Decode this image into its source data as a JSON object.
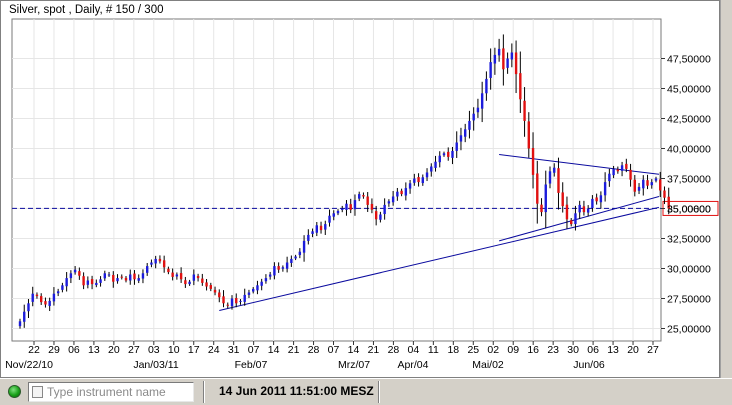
{
  "chart_title": "Silver, spot , Daily, # 150 / 300",
  "status": {
    "search_placeholder": "Type instrument name",
    "timestamp": "14 Jun 2011 11:51:00 MESZ",
    "led_color": "#19a019"
  },
  "colors": {
    "up": "#1b1bdb",
    "down": "#e01010",
    "trendline": "#0a0a9e",
    "price_line": "#0a0a9e",
    "wick": "#000000"
  },
  "chart_data": {
    "type": "candlestick",
    "title": "Silver, spot , Daily, # 150 / 300",
    "ylim": [
      24.6,
      50.2
    ],
    "y_ticks": [
      "25,00000",
      "27,50000",
      "30,00000",
      "32,50000",
      "35,00000",
      "37,50000",
      "40,00000",
      "42,50000",
      "45,00000",
      "47,50000"
    ],
    "y_tick_values": [
      25,
      27.5,
      30,
      32.5,
      35,
      37.5,
      40,
      42.5,
      45,
      47.5
    ],
    "x_ticks": [
      "22",
      "29",
      "06",
      "13",
      "20",
      "27",
      "03",
      "10",
      "17",
      "24",
      "31",
      "07",
      "14",
      "21",
      "28",
      "07",
      "14",
      "21",
      "28",
      "04",
      "11",
      "18",
      "25",
      "02",
      "09",
      "16",
      "23",
      "30",
      "06",
      "13",
      "20",
      "27"
    ],
    "x_month_labels": [
      "Nov/22/10",
      "Jan/03/11",
      "Feb/07",
      "Mrz/07",
      "Apr/04",
      "Mai/02",
      "Jun/06"
    ],
    "current_price_label": "35,00600",
    "current_price": 35.006,
    "grid": true,
    "close": [
      25.6,
      26.4,
      27.1,
      27.9,
      27.7,
      27.2,
      27.0,
      27.3,
      27.9,
      28.1,
      28.6,
      29.2,
      29.6,
      29.9,
      29.4,
      28.6,
      29.0,
      28.7,
      28.8,
      29.1,
      29.6,
      29.5,
      28.9,
      29.2,
      29.3,
      29.0,
      29.5,
      29.1,
      29.2,
      29.6,
      30.2,
      30.5,
      30.8,
      30.6,
      30.1,
      29.7,
      29.3,
      29.5,
      29.1,
      28.7,
      28.9,
      29.5,
      29.2,
      28.8,
      28.5,
      28.3,
      28.0,
      27.6,
      27.1,
      26.9,
      27.5,
      27.1,
      27.3,
      27.8,
      28.0,
      28.3,
      28.6,
      28.9,
      29.2,
      29.5,
      30.2,
      29.9,
      30.1,
      30.5,
      30.8,
      31.0,
      31.4,
      32.3,
      32.8,
      33.1,
      33.6,
      33.2,
      33.7,
      34.4,
      34.6,
      34.8,
      35.0,
      35.4,
      34.9,
      35.7,
      36.2,
      36.0,
      35.3,
      34.9,
      34.1,
      34.5,
      35.3,
      35.6,
      36.0,
      36.4,
      36.2,
      36.7,
      37.1,
      37.5,
      37.2,
      37.6,
      38.0,
      38.5,
      38.9,
      39.4,
      39.6,
      39.3,
      39.8,
      40.5,
      41.1,
      41.6,
      42.3,
      42.9,
      43.4,
      44.6,
      45.8,
      47.2,
      47.8,
      48.3,
      46.6,
      47.5,
      48.0,
      46.2,
      44.1,
      42.3,
      40.0,
      37.8,
      35.4,
      34.7,
      37.0,
      38.1,
      38.4,
      36.3,
      35.2,
      34.1,
      33.7,
      34.6,
      35.3,
      34.7,
      35.0,
      35.8,
      35.6,
      36.1,
      37.2,
      37.9,
      38.3,
      38.1,
      38.6,
      38.3,
      37.4,
      36.4,
      36.8,
      37.4,
      36.9,
      37.2,
      37.5,
      36.5,
      35.9,
      35.0
    ]
  },
  "annotations": {
    "triangle_upper": {
      "x0": 113,
      "y0": 39.5,
      "x1": 162,
      "y1": 37.85
    },
    "triangle_lower": {
      "x0": 113,
      "y0": 32.3,
      "x1": 162,
      "y1": 36.0
    },
    "long_trendline": {
      "x0": 47,
      "y0": 26.5,
      "x1": 162,
      "y1": 35.1
    }
  }
}
